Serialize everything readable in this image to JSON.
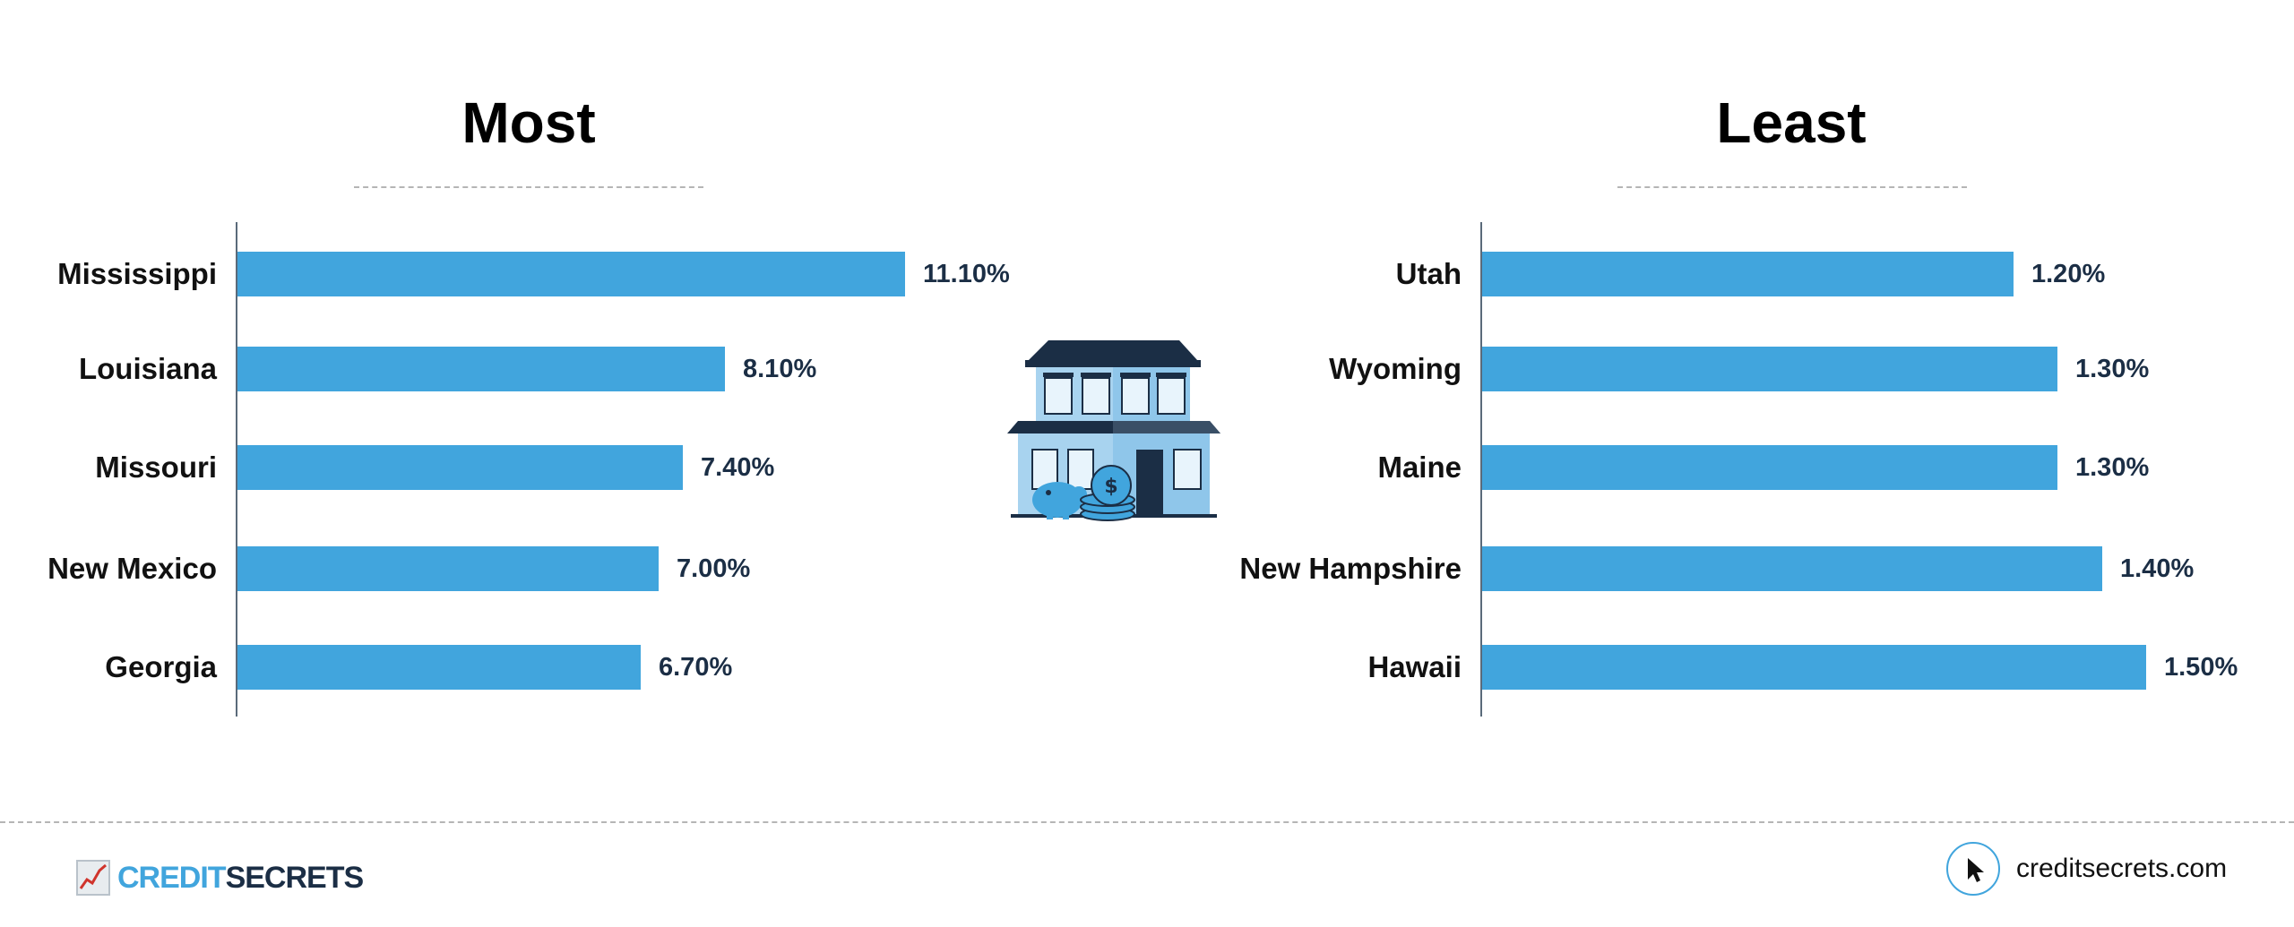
{
  "chart_data": [
    {
      "type": "bar",
      "orientation": "horizontal",
      "title": "Most",
      "categories": [
        "Mississippi",
        "Louisiana",
        "Missouri",
        "New Mexico",
        "Georgia"
      ],
      "values": [
        11.1,
        8.1,
        7.4,
        7.0,
        6.7
      ],
      "value_labels": [
        "11.10%",
        "8.10%",
        "7.40%",
        "7.00%",
        "6.70%"
      ],
      "xlim": [
        0,
        11.1
      ],
      "grid": false,
      "legend": "none"
    },
    {
      "type": "bar",
      "orientation": "horizontal",
      "title": "Least",
      "categories": [
        "Utah",
        "Wyoming",
        "Maine",
        "New Hampshire",
        "Hawaii"
      ],
      "values": [
        1.2,
        1.3,
        1.3,
        1.4,
        1.5
      ],
      "value_labels": [
        "1.20%",
        "1.30%",
        "1.30%",
        "1.40%",
        "1.50%"
      ],
      "xlim": [
        0,
        1.5
      ],
      "grid": false,
      "legend": "none"
    }
  ],
  "colors": {
    "bar": "#41a5dd",
    "value_text": "#1b2e45",
    "accent_dark": "#1b2e45"
  },
  "footer": {
    "brand_part1": "CREDIT",
    "brand_part2": "SECRETS",
    "logo_icon": "chart-trend-icon",
    "site_icon": "cursor-arrow-icon",
    "site": "creditsecrets.com"
  },
  "illustration": "bank-building-with-piggy-bank-and-coins"
}
